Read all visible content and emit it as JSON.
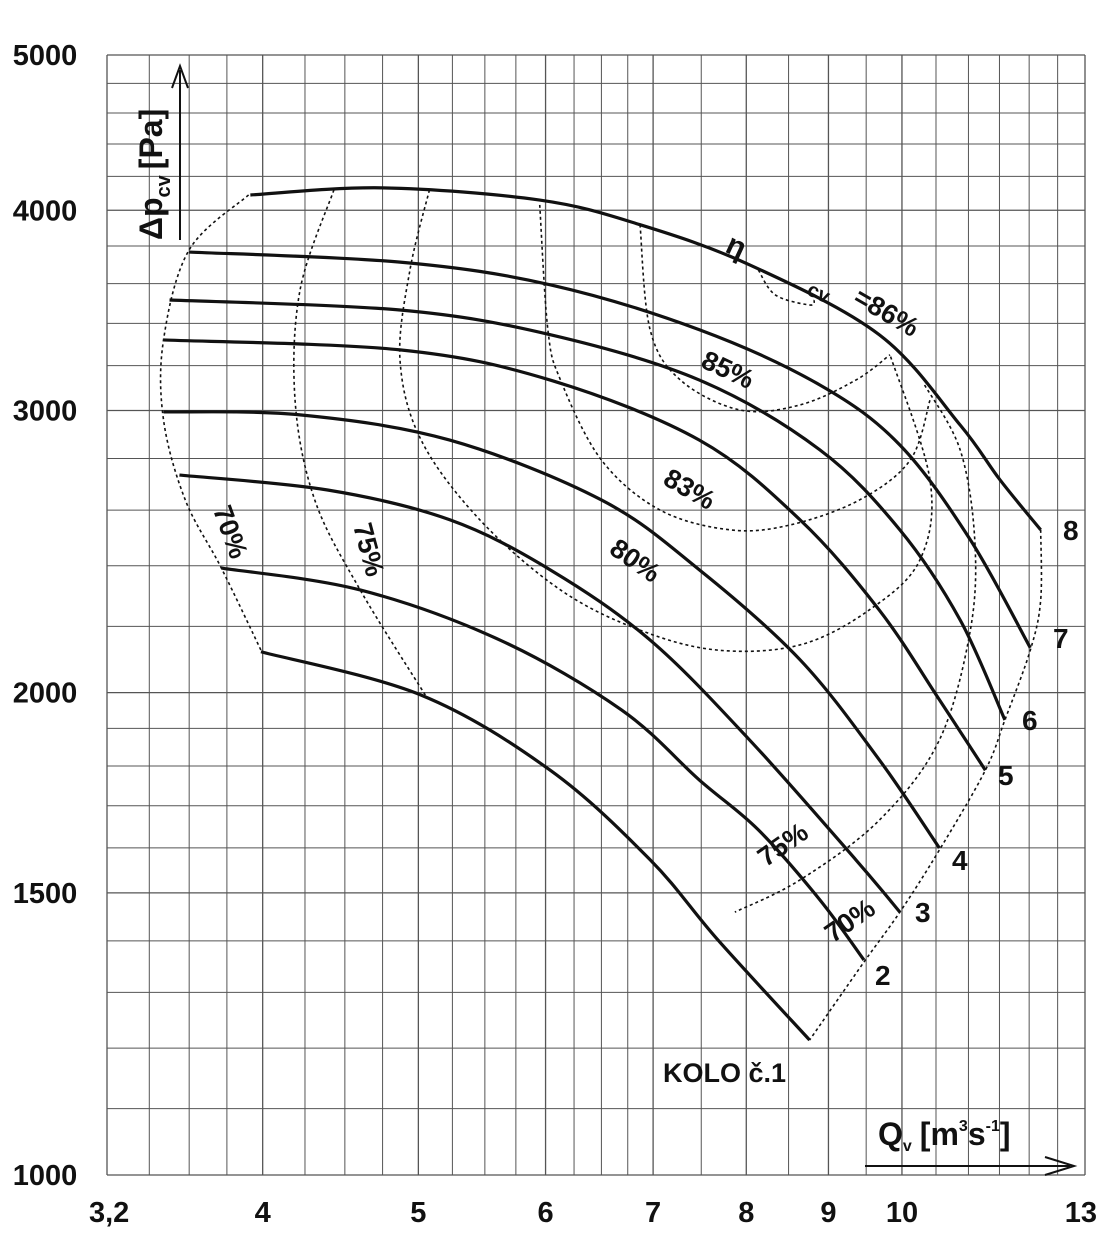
{
  "chart_data": {
    "type": "line",
    "xscale": "log",
    "yscale": "log",
    "xlim": [
      3.2,
      13
    ],
    "ylim": [
      1000,
      5000
    ],
    "xticks": [
      {
        "value": 3.2,
        "label": "3,2"
      },
      4,
      5,
      6,
      7,
      8,
      9,
      10,
      13
    ],
    "yticks": [
      1000,
      1500,
      2000,
      3000,
      4000,
      5000
    ],
    "xgrid": [
      3.4,
      3.6,
      3.8,
      4.25,
      4.5,
      4.75,
      5.25,
      5.5,
      5.75,
      6.25,
      6.5,
      6.75,
      7.5,
      8.5,
      9.5,
      10.5,
      11,
      11.5,
      12,
      12.5
    ],
    "ygrid": [
      1100,
      1200,
      1300,
      1400,
      1600,
      1700,
      1800,
      1900,
      2200,
      2400,
      2600,
      2800,
      3200,
      3400,
      3600,
      3800,
      4200,
      4400,
      4600,
      4800
    ],
    "grid_color": "#555555",
    "xlabel": {
      "text": "Q",
      "sub": "v",
      "unit": "[m",
      "sup1": "3",
      "unit2": "s",
      "sup2": "-1",
      "end": "]"
    },
    "ylabel": {
      "text": "Δp",
      "sub": "cv",
      "unit": "[Pa]"
    },
    "annotations": {
      "wheel": "KOLO č.1",
      "eta": "η",
      "eta_sub": "cv"
    },
    "series": [
      {
        "style": "solid",
        "color": "#111111",
        "x": [
          3.99,
          5.02,
          6.04,
          6.97,
          7.68,
          8.76
        ],
        "values": [
          2121,
          1993,
          1789,
          1573,
          1402,
          1214
        ]
      },
      {
        "name": "2",
        "style": "solid",
        "color": "#111111",
        "x": [
          3.77,
          4.6,
          5.62,
          6.69,
          7.48,
          8.14,
          8.89,
          9.47
        ],
        "values": [
          2392,
          2318,
          2157,
          1951,
          1764,
          1642,
          1485,
          1362
        ]
      },
      {
        "name": "3",
        "style": "solid",
        "color": "#111111",
        "x": [
          3.55,
          4.39,
          5.23,
          6.04,
          6.97,
          8.04,
          9.36,
          9.97
        ],
        "values": [
          2734,
          2676,
          2564,
          2386,
          2157,
          1868,
          1573,
          1459
        ]
      },
      {
        "name": "4",
        "style": "solid",
        "color": "#111111",
        "x": [
          3.47,
          4.22,
          5.23,
          6.5,
          7.48,
          8.64,
          9.68,
          10.55
        ],
        "values": [
          2994,
          2981,
          2875,
          2638,
          2386,
          2097,
          1816,
          1600
        ]
      },
      {
        "name": "5",
        "style": "solid",
        "color": "#111111",
        "x": [
          3.47,
          4.87,
          6.04,
          7.48,
          8.64,
          9.68,
          10.55,
          11.27
        ],
        "values": [
          3320,
          3273,
          3134,
          2875,
          2564,
          2252,
          1980,
          1789
        ]
      },
      {
        "name": "6",
        "style": "solid",
        "color": "#111111",
        "x": [
          3.5,
          4.87,
          6.04,
          7.48,
          8.89,
          9.97,
          10.87,
          11.59
        ],
        "values": [
          3516,
          3466,
          3345,
          3134,
          2835,
          2527,
          2220,
          1923
        ]
      },
      {
        "name": "7",
        "style": "solid",
        "color": "#111111",
        "x": [
          3.6,
          4.87,
          6.04,
          7.48,
          8.89,
          9.97,
          11.03,
          12.02
        ],
        "values": [
          3767,
          3713,
          3594,
          3369,
          3112,
          2855,
          2491,
          2133
        ]
      },
      {
        "name": "8",
        "style": "solid",
        "color": "#111111",
        "x": [
          3.93,
          4.75,
          5.95,
          6.87,
          8.04,
          9.68,
          10.87,
          11.51,
          12.2
        ],
        "values": [
          4089,
          4131,
          4059,
          3918,
          3698,
          3345,
          2938,
          2715,
          2527
        ]
      },
      {
        "name": "70%",
        "style": "dashed",
        "color": "#111111",
        "x": [
          3.92,
          3.6,
          3.47,
          3.47,
          3.58,
          3.77,
          3.99
        ],
        "values": [
          4089,
          3779,
          3320,
          2960,
          2638,
          2392,
          2126
        ]
      },
      {
        "name": "70%",
        "style": "dashed",
        "color": "#111111",
        "x": [
          12.2,
          12.2,
          12.02,
          11.59,
          11.27,
          10.55,
          9.97,
          9.47,
          8.76
        ],
        "values": [
          2527,
          2285,
          2126,
          1923,
          1789,
          1595,
          1459,
          1358,
          1214
        ]
      },
      {
        "name": "75%",
        "style": "dashed",
        "color": "#111111",
        "x": [
          4.43,
          4.22,
          4.19,
          4.31,
          4.6,
          5.05
        ],
        "values": [
          4119,
          3567,
          3045,
          2638,
          2318,
          1993
        ]
      },
      {
        "name": "75%",
        "style": "dashed",
        "color": "#111111",
        "x": [
          10.33,
          10.87,
          11.1,
          11.03,
          10.55,
          9.68,
          8.64,
          7.87
        ],
        "values": [
          3112,
          2835,
          2491,
          2188,
          1868,
          1665,
          1528,
          1459
        ]
      },
      {
        "name": "80%",
        "style": "dashed",
        "color": "#111111",
        "x": [
          5.08,
          4.94,
          4.87,
          5.02,
          5.46,
          6.13,
          6.87,
          7.68,
          8.64,
          9.54,
          10.26,
          10.41,
          9.83
        ],
        "values": [
          4119,
          3671,
          3227,
          2875,
          2564,
          2318,
          2188,
          2126,
          2142,
          2252,
          2420,
          2715,
          3250
        ]
      },
      {
        "name": "83%",
        "style": "dashed",
        "color": "#111111",
        "x": [
          5.95,
          6.02,
          6.13,
          6.5,
          7.07,
          7.82,
          8.52,
          9.41,
          10.12,
          10.41
        ],
        "values": [
          4031,
          3369,
          3134,
          2794,
          2600,
          2527,
          2545,
          2638,
          2794,
          3045
        ]
      },
      {
        "name": "85%",
        "style": "dashed",
        "color": "#111111",
        "x": [
          6.87,
          6.97,
          7.28,
          7.93,
          8.64,
          9.36,
          9.83
        ],
        "values": [
          3918,
          3369,
          3134,
          3002,
          3024,
          3134,
          3250
        ]
      },
      {
        "name": "=86%",
        "style": "dashed",
        "color": "#111111",
        "x": [
          8.14,
          8.34,
          8.76,
          8.82
        ],
        "values": [
          3671,
          3542,
          3491,
          3516
        ]
      }
    ]
  }
}
